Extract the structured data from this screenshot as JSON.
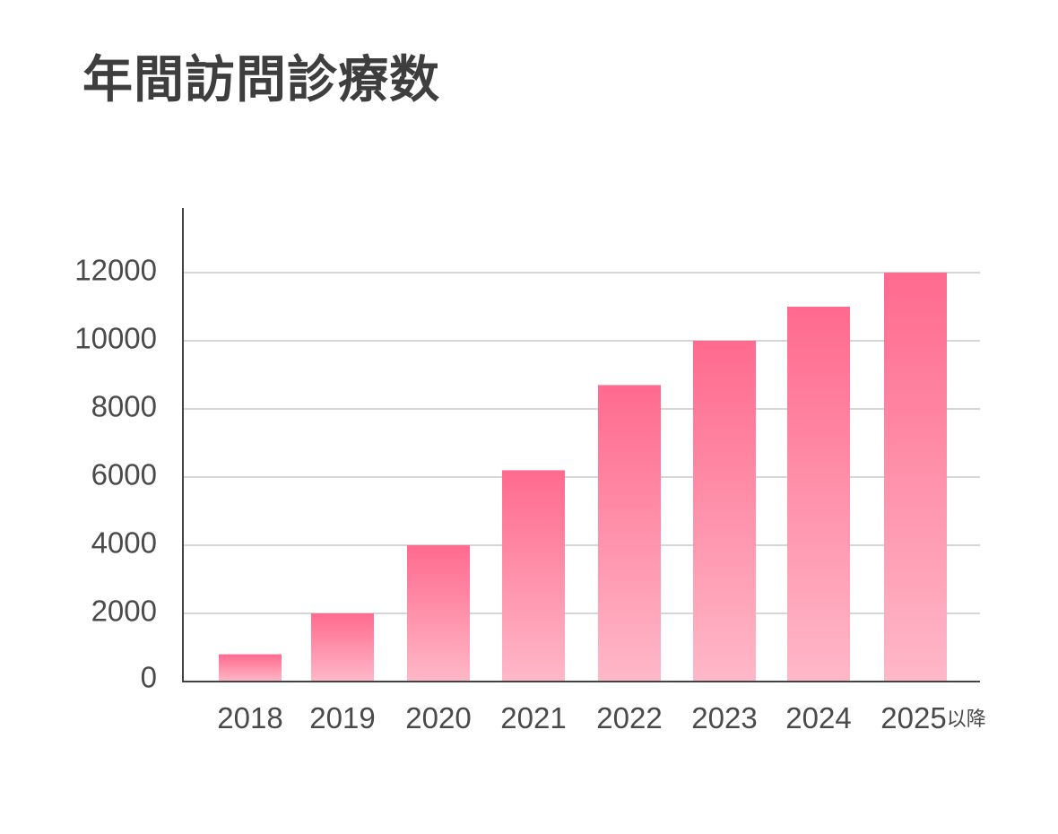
{
  "chart_data": {
    "type": "bar",
    "title": "年間訪問診療数",
    "categories": [
      "2018",
      "2019",
      "2020",
      "2021",
      "2022",
      "2023",
      "2024",
      "2025"
    ],
    "category_suffix": {
      "index": 7,
      "text": "以降"
    },
    "values": [
      800,
      2000,
      4000,
      6200,
      8700,
      10000,
      11000,
      12000
    ],
    "ylim": [
      0,
      13500
    ],
    "yticks": [
      0,
      2000,
      4000,
      6000,
      8000,
      10000,
      12000
    ],
    "xlabel": "",
    "ylabel": "",
    "grid": true,
    "colors": {
      "bar_top": "#ff6a8e",
      "bar_bottom": "#ffb8c8",
      "grid": "#d6d6d6",
      "axis": "#444444"
    }
  }
}
